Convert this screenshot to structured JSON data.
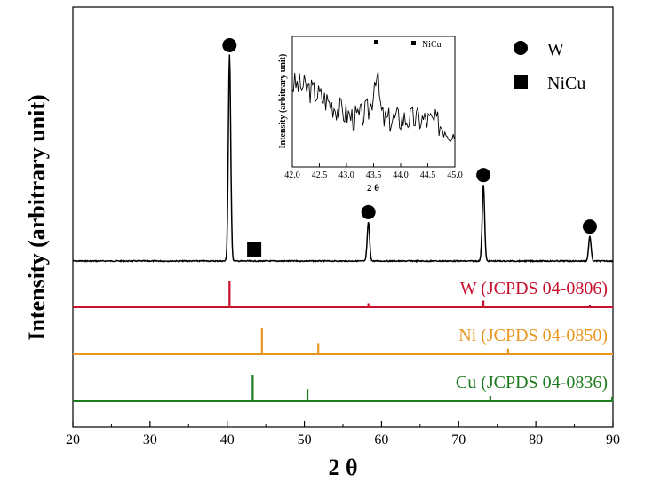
{
  "chart_data": [
    {
      "type": "line",
      "title": "",
      "xlabel": "2 θ",
      "ylabel": "Intensity (arbitrary unit)",
      "xlim": [
        20,
        90
      ],
      "xticks": [
        20,
        30,
        40,
        50,
        60,
        70,
        80,
        90
      ],
      "yticks": [],
      "grid": false,
      "legend": {
        "placement": "top-right",
        "entries": [
          {
            "marker": "circle",
            "label": "W"
          },
          {
            "marker": "square",
            "label": "NiCu"
          }
        ]
      },
      "series": [
        {
          "name": "",
          "color": "#000000",
          "peaks": [
            {
              "x": 40.3,
              "height": 1.0,
              "marker": "circle"
            },
            {
              "x": 58.3,
              "height": 0.19,
              "marker": "circle"
            },
            {
              "x": 73.2,
              "height": 0.37,
              "marker": "circle"
            },
            {
              "x": 87.0,
              "height": 0.12,
              "marker": "circle"
            },
            {
              "x": 43.5,
              "height": 0.0,
              "marker": "square"
            }
          ]
        }
      ],
      "reference_patterns": [
        {
          "label": "W (JCPDS 04-0806)",
          "color": "#c8102e",
          "x": [
            40.3,
            58.3,
            73.2,
            87.0
          ],
          "intensity": [
            1.0,
            0.15,
            0.25,
            0.1
          ]
        },
        {
          "label": "Ni (JCPDS 04-0850)",
          "color": "#e8961e",
          "x": [
            44.5,
            51.8,
            76.4
          ],
          "intensity": [
            1.0,
            0.42,
            0.21
          ]
        },
        {
          "label": "Cu (JCPDS 04-0836)",
          "color": "#1e7a1e",
          "x": [
            43.3,
            50.4,
            74.1,
            89.9
          ],
          "intensity": [
            1.0,
            0.46,
            0.2,
            0.17
          ]
        }
      ]
    },
    {
      "type": "line",
      "title": "",
      "xlabel": "2 θ",
      "ylabel": "Intensity (arbitrary unit)",
      "xlim": [
        42.0,
        45.0
      ],
      "xticks": [
        "42.0",
        "42.5",
        "43.0",
        "43.5",
        "44.0",
        "44.5",
        "45.0"
      ],
      "legend": {
        "placement": "top-right",
        "entries": [
          {
            "marker": "square",
            "label": "NiCu"
          }
        ]
      },
      "series": [
        {
          "name": "",
          "color": "#000000",
          "peak_x": 43.55,
          "marker": "square"
        }
      ]
    }
  ]
}
